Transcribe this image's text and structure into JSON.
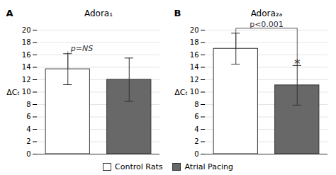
{
  "chart_data": [
    {
      "type": "bar",
      "title": "Adora₁",
      "panel_label": "A",
      "categories": [
        "Control Rats",
        "Atrial Pacing"
      ],
      "values": [
        13.7,
        12.0
      ],
      "errors": [
        2.5,
        3.5
      ],
      "colors": [
        "#ffffff",
        "#686868"
      ],
      "ylabel": "ΔCₜ",
      "annotation": "p=NS",
      "ylim": [
        0,
        20
      ],
      "yticks": [
        0,
        2,
        4,
        6,
        8,
        10,
        12,
        14,
        16,
        18,
        20
      ],
      "grid": true,
      "legend": "bottom",
      "tick_labels": "y"
    },
    {
      "type": "bar",
      "title": "Adora₂ₐ",
      "panel_label": "B",
      "categories": [
        "Control Rats",
        "Atrial Pacing"
      ],
      "values": [
        17.0,
        11.1
      ],
      "errors": [
        2.5,
        3.2
      ],
      "colors": [
        "#ffffff",
        "#686868"
      ],
      "ylabel": "ΔCₜ",
      "annotation": "p<0.001",
      "star_annotation": "*",
      "ylim": [
        0,
        20
      ],
      "yticks": [
        0,
        2,
        4,
        6,
        8,
        10,
        12,
        14,
        16,
        18,
        20
      ],
      "grid": true,
      "legend": "bottom",
      "tick_labels": "y"
    }
  ]
}
